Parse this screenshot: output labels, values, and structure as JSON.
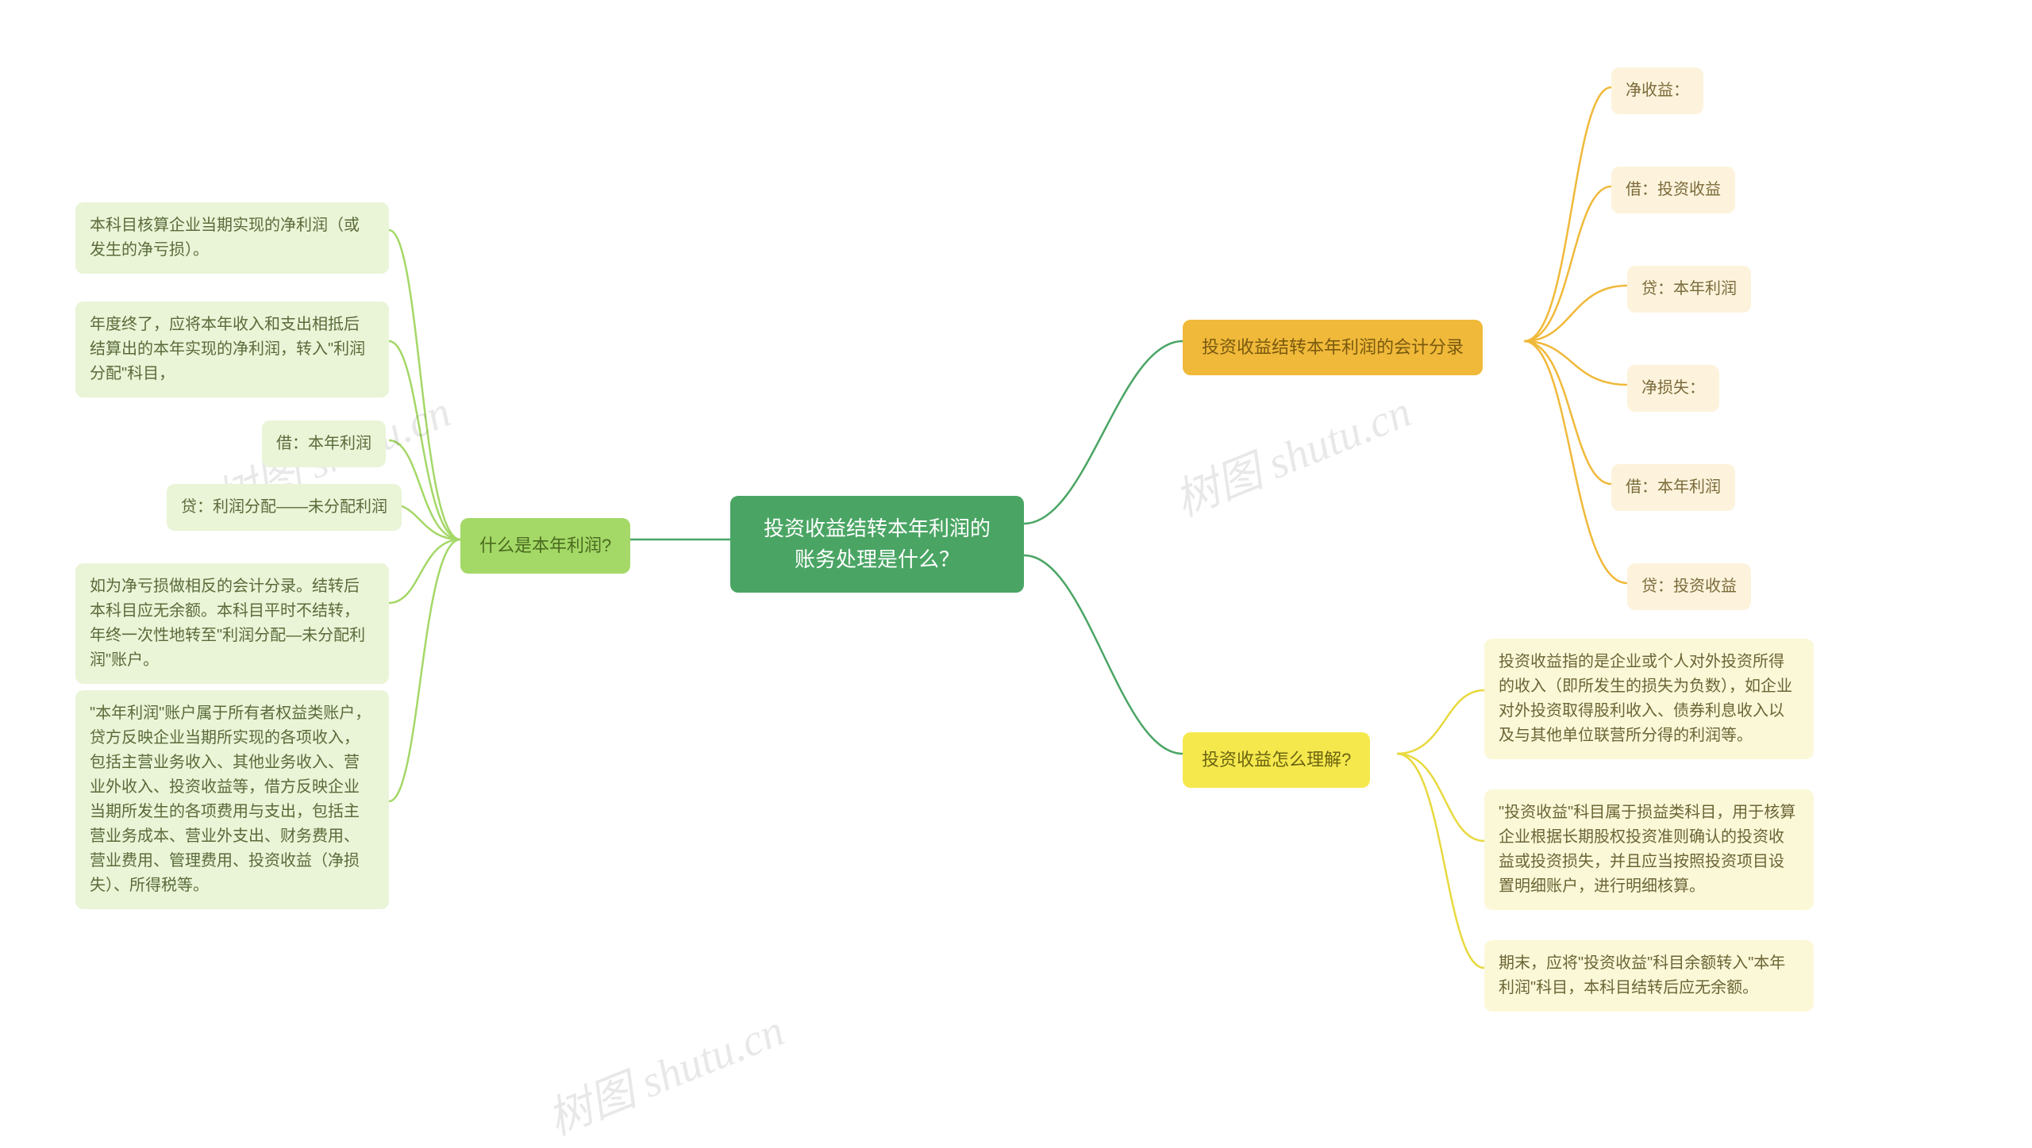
{
  "watermark": "树图 shutu.cn",
  "root": {
    "text": "投资收益结转本年利润的\n账务处理是什么？",
    "bg": "#4aa564",
    "fg": "#ffffff"
  },
  "branches": {
    "left": {
      "label": "什么是本年利润?",
      "bg": "#a4d867",
      "fg": "#4a6b1f",
      "leaf_bg": "#eaf4d7",
      "leaf_fg": "#5a6b3a",
      "connector_color": "#a4d867",
      "leaves": [
        "本科目核算企业当期实现的净利润（或发生的净亏损）。",
        "年度终了，应将本年收入和支出相抵后结算出的本年实现的净利润，转入\"利润分配\"科目，",
        "借：本年利润",
        "贷：利润分配——未分配利润",
        "如为净亏损做相反的会计分录。结转后本科目应无余额。本科目平时不结转，年终一次性地转至\"利润分配—未分配利润\"账户。",
        "\"本年利润\"账户属于所有者权益类账户，贷方反映企业当期所实现的各项收入，包括主营业务收入、其他业务收入、营业外收入、投资收益等，借方反映企业当期所发生的各项费用与支出，包括主营业务成本、营业外支出、财务费用、营业费用、管理费用、投资收益（净损失）、所得税等。"
      ]
    },
    "right_top": {
      "label": "投资收益结转本年利润的会计分录",
      "bg": "#f0b93a",
      "fg": "#7a5a0f",
      "leaf_bg": "#fdf3dc",
      "leaf_fg": "#7a6a3a",
      "connector_color": "#f0b93a",
      "leaves": [
        "净收益：",
        "借：投资收益",
        "贷：本年利润",
        "净损失：",
        "借：本年利润",
        "贷：投资收益"
      ]
    },
    "right_bottom": {
      "label": "投资收益怎么理解?",
      "bg": "#f5e84d",
      "fg": "#6b6410",
      "leaf_bg": "#fbf8d8",
      "leaf_fg": "#6b6535",
      "connector_color": "#e8d93f",
      "leaves": [
        "投资收益指的是企业或个人对外投资所得的收入（即所发生的损失为负数），如企业对外投资取得股利收入、债券利息收入以及与其他单位联营所分得的利润等。",
        "\"投资收益\"科目属于损益类科目，用于核算企业根据长期股权投资准则确认的投资收益或投资损失，并且应当按照投资项目设置明细账户，进行明细核算。",
        "期末，应将\"投资收益\"科目余额转入\"本年利润\"科目，本科目结转后应无余额。"
      ]
    }
  },
  "root_connector_color": "#4aa564"
}
